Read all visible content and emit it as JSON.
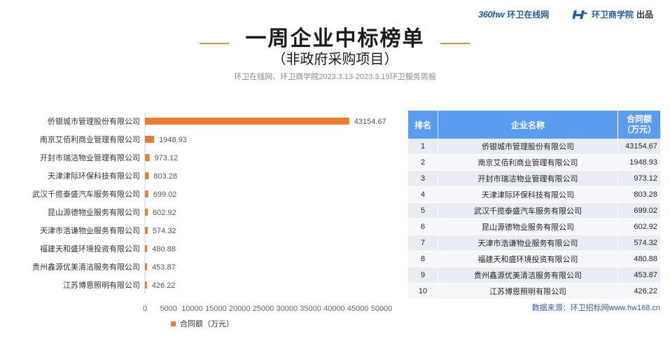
{
  "header": {
    "brand_a_logo": "360hw",
    "brand_a_name": "环卫在线网",
    "brand_b_name": "环卫商学院",
    "brand_b_suffix": "出品"
  },
  "title": "一周企业中标榜单",
  "subtitle": "（非政府采购项目）",
  "caption": "环卫在线网、环卫商学院2023.3.13-2023.3.19环卫服务周报",
  "colors": {
    "bar": "#ed7d31",
    "table_header": "#5a9cf0",
    "accent_line": "#f0883e"
  },
  "chart_data": {
    "type": "bar",
    "orientation": "horizontal",
    "categories": [
      "侨银城市管理股份有限公司",
      "南京艾佰利商业管理有限公司",
      "开封市瑞洁物业管理有限公司",
      "天津津际环保科技有限公司",
      "武汉千揽泰盛汽车服务有限公司",
      "昆山源德物业服务有限公司",
      "天津市浩谦物业服务有限公司",
      "福建天和盛环境投资有限公司",
      "贵州鑫源优美清洁服务有限公司",
      "江苏博恩照明有限公司"
    ],
    "values": [
      43154.67,
      1948.93,
      973.12,
      803.28,
      699.02,
      602.92,
      574.32,
      480.88,
      453.87,
      426.22
    ],
    "value_labels": [
      "43154.67",
      "1948.93",
      "973.12",
      "803.28",
      "699.02",
      "602.92",
      "574.32",
      "480.88",
      "453.87",
      "426.22"
    ],
    "xlim": [
      0,
      50000
    ],
    "xticks": [
      0,
      5000,
      10000,
      15000,
      20000,
      25000,
      30000,
      35000,
      40000,
      45000,
      50000
    ],
    "xtick_labels": [
      "0",
      "5000",
      "10000",
      "15000",
      "20000",
      "25000",
      "30000",
      "35000",
      "40000",
      "45000",
      "50000"
    ],
    "legend": "合同额（万元）",
    "legend_position": "bottom-left",
    "grid": false
  },
  "table": {
    "headers": [
      "排名",
      "企业名称",
      "合同额\n（万元）"
    ],
    "rows": [
      [
        "1",
        "侨银城市管理股份有限公司",
        "43154.67"
      ],
      [
        "2",
        "南京艾佰利商业管理有限公司",
        "1948.93"
      ],
      [
        "3",
        "开封市瑞洁物业管理有限公司",
        "973.12"
      ],
      [
        "4",
        "天津津际环保科技有限公司",
        "803.28"
      ],
      [
        "5",
        "武汉千揽泰盛汽车服务有限公司",
        "699.02"
      ],
      [
        "6",
        "昆山源德物业服务有限公司",
        "602.92"
      ],
      [
        "7",
        "天津市浩谦物业服务有限公司",
        "574.32"
      ],
      [
        "8",
        "福建天和盛环境投资有限公司",
        "480.88"
      ],
      [
        "9",
        "贵州鑫源优美清洁服务有限公司",
        "453.87"
      ],
      [
        "10",
        "江苏博恩照明有限公司",
        "426.22"
      ]
    ]
  },
  "source": "数据来源：环卫招标网www.hw168.cn"
}
